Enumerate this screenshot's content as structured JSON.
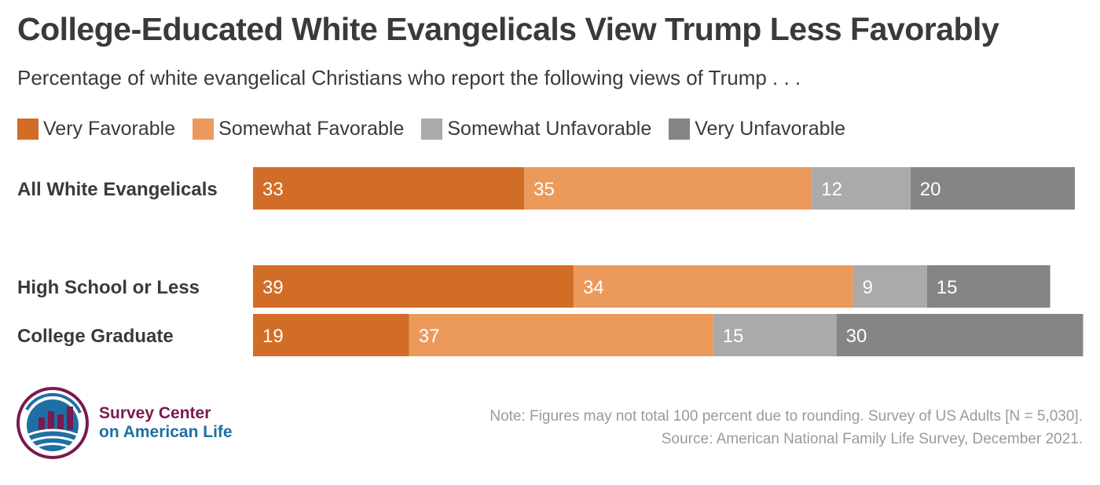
{
  "title": "College-Educated White Evangelicals View Trump Less Favorably",
  "subtitle": "Percentage of white evangelical Christians who report the following views of Trump . . .",
  "legend": [
    {
      "label": "Very Favorable",
      "color": "#d26d28"
    },
    {
      "label": "Somewhat Favorable",
      "color": "#ec9a5c"
    },
    {
      "label": "Somewhat Unfavorable",
      "color": "#aaaaaa"
    },
    {
      "label": "Very Unfavorable",
      "color": "#858585"
    }
  ],
  "chart_data": {
    "type": "bar",
    "orientation": "horizontal",
    "stacked": true,
    "categories": [
      "All White Evangelicals",
      "High School or Less",
      "College Graduate"
    ],
    "series": [
      {
        "name": "Very Favorable",
        "color": "#d26d28",
        "values": [
          33,
          39,
          19
        ]
      },
      {
        "name": "Somewhat Favorable",
        "color": "#ec9a5c",
        "values": [
          35,
          34,
          37
        ]
      },
      {
        "name": "Somewhat Unfavorable",
        "color": "#aaaaaa",
        "values": [
          12,
          9,
          15
        ]
      },
      {
        "name": "Very Unfavorable",
        "color": "#858585",
        "values": [
          20,
          15,
          30
        ]
      }
    ],
    "xlim": [
      0,
      100
    ],
    "grid": false,
    "legend_position": "top-left"
  },
  "logo": {
    "line1": "Survey Center",
    "line2": "on American Life"
  },
  "notes": {
    "note": "Note: Figures may not total 100 percent due to rounding. Survey of US Adults [N = 5,030].",
    "source": "Source: American National Family Life Survey, December 2021."
  }
}
